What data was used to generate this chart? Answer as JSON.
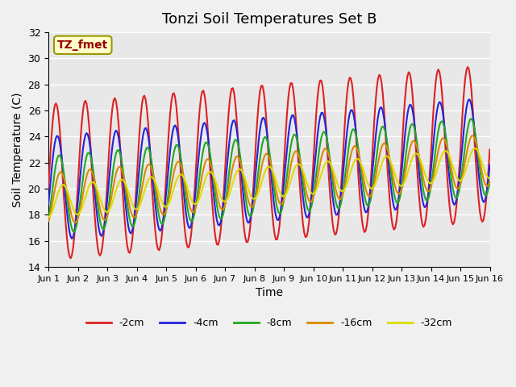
{
  "title": "Tonzi Soil Temperatures Set B",
  "xlabel": "Time",
  "ylabel": "Soil Temperature (C)",
  "annotation_text": "TZ_fmet",
  "annotation_bg": "#FFFFCC",
  "annotation_border": "#999900",
  "annotation_color": "#990000",
  "ylim": [
    14,
    32
  ],
  "xlim": [
    0,
    15
  ],
  "xtick_labels": [
    "Jun 1",
    "Jun 2",
    "Jun 3",
    "Jun 4",
    "Jun 5",
    "Jun 6",
    "Jun 7",
    "Jun 8",
    "Jun 9",
    "Jun 10",
    "Jun 11",
    "Jun 12",
    "Jun 13",
    "Jun 14",
    "Jun 15",
    "Jun 16"
  ],
  "ytick_values": [
    14,
    16,
    18,
    20,
    22,
    24,
    26,
    28,
    30,
    32
  ],
  "series_colors": [
    "#dd2222",
    "#2222dd",
    "#22aa22",
    "#dd8800",
    "#dddd00"
  ],
  "series_labels": [
    "-2cm",
    "-4cm",
    "-8cm",
    "-16cm",
    "-32cm"
  ],
  "bg_color": "#e8e8e8",
  "plot_bg_color": "#e8e8e8",
  "grid_color": "#ffffff"
}
